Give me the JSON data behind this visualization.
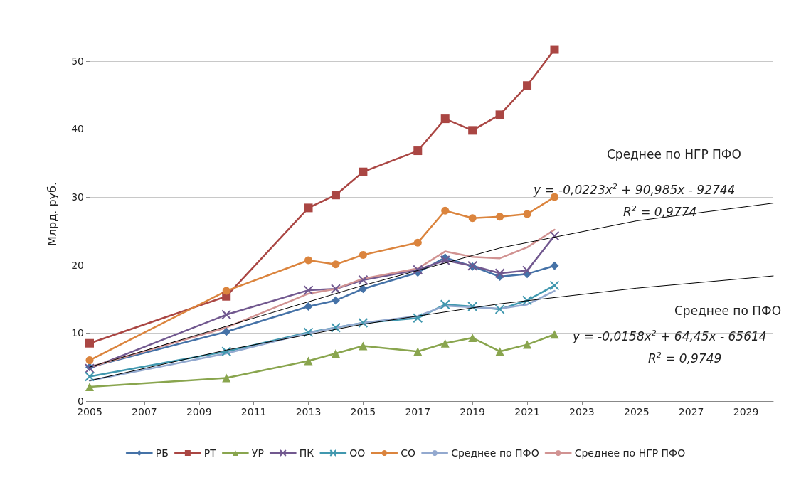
{
  "chart_data": {
    "type": "line",
    "ylabel": "Млрд. руб.",
    "xlim": [
      2005,
      2030
    ],
    "xticks": [
      2005,
      2007,
      2009,
      2011,
      2013,
      2015,
      2017,
      2019,
      2021,
      2023,
      2025,
      2027,
      2029
    ],
    "ylim": [
      0,
      55
    ],
    "yticks": [
      0,
      10,
      20,
      30,
      40,
      50
    ],
    "grid": "y",
    "legend": "bottom",
    "x": [
      2005,
      2010,
      2013,
      2014,
      2015,
      2017,
      2018,
      2019,
      2020,
      2021,
      2022
    ],
    "series": [
      {
        "name": "РБ",
        "color": "#4572a7",
        "marker": "diamond",
        "values": [
          5,
          10.2,
          13.9,
          14.8,
          16.5,
          18.9,
          21.1,
          19.8,
          18.3,
          18.7,
          19.9
        ]
      },
      {
        "name": "РТ",
        "color": "#aa4643",
        "marker": "square",
        "values": [
          8.5,
          15.4,
          28.4,
          30.3,
          33.7,
          36.8,
          41.5,
          39.8,
          42.1,
          46.4,
          51.7
        ]
      },
      {
        "name": "УР",
        "color": "#89a54e",
        "marker": "triangle",
        "values": [
          2.1,
          3.4,
          5.9,
          7,
          8.1,
          7.3,
          8.5,
          9.3,
          7.3,
          8.3,
          9.8
        ]
      },
      {
        "name": "ПК",
        "color": "#71588f",
        "marker": "cross",
        "values": [
          4.8,
          12.7,
          16.3,
          16.5,
          17.8,
          19.3,
          20.7,
          19.9,
          18.8,
          19.2,
          24.3
        ]
      },
      {
        "name": "ОО",
        "color": "#4198af",
        "marker": "cross",
        "values": [
          3.6,
          7.3,
          10.1,
          10.8,
          11.5,
          12.2,
          14.2,
          13.9,
          13.5,
          14.8,
          17
        ]
      },
      {
        "name": "СО",
        "color": "#db843d",
        "marker": "circle",
        "values": [
          6,
          16.2,
          20.7,
          20.1,
          21.5,
          23.3,
          28,
          26.9,
          27.1,
          27.5,
          30
        ]
      },
      {
        "name": "Среднее по ПФО",
        "color": "#93a9cf",
        "marker": "none",
        "values": [
          3,
          7,
          10,
          10.8,
          11.5,
          12.5,
          14,
          13.8,
          13.6,
          14.2,
          16.2
        ]
      },
      {
        "name": "Среднее по НГР ПФО",
        "color": "#d19392",
        "marker": "none",
        "values": [
          5,
          10.8,
          15.8,
          16.5,
          18,
          19.5,
          22,
          21.2,
          21,
          22.6,
          25.2
        ]
      },
      {
        "type": "line",
        "color": "#000000",
        "marker": "none",
        "x": [
          2005,
          2010,
          2015,
          2020,
          2025,
          2030
        ],
        "values": [
          3,
          7.5,
          11.3,
          14.3,
          16.6,
          18.4
        ]
      },
      {
        "type": "line",
        "color": "#000000",
        "marker": "none",
        "x": [
          2005,
          2010,
          2015,
          2020,
          2025,
          2030
        ],
        "values": [
          5,
          11,
          17,
          22.5,
          26.5,
          29.1
        ]
      }
    ],
    "annotations": [
      "Среднее по НГР ПФО",
      "y = -0,0223x$^{2}$ + 90,985x - 92744",
      "R$^{2}$ = 0,9774",
      "Среднее по ПФО",
      "y = -0,0158x$^{2}$ + 64,45x - 65614",
      "R$^{2}$ = 0,9749"
    ]
  }
}
